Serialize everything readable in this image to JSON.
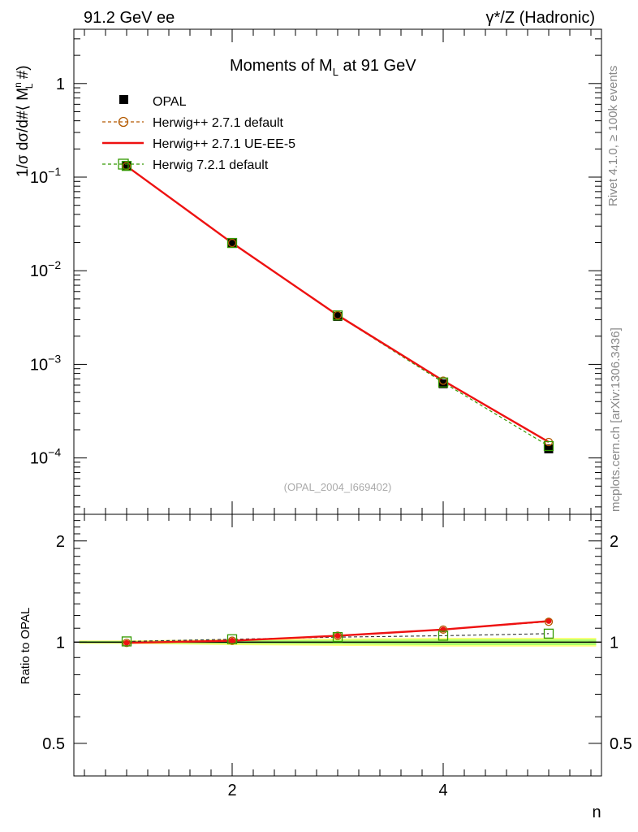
{
  "header": {
    "left": "91.2 GeV ee",
    "right": "γ*/Z (Hadronic)"
  },
  "side_labels": {
    "rivet": "Rivet 4.1.0, ≥ 100k events",
    "mcplots": "mcplots.cern.ch [arXiv:1306.3436]"
  },
  "colors": {
    "opal": "#000000",
    "herwigpp_default": "#b35900",
    "herwigpp_ue": "#ee1111",
    "herwig7": "#339900",
    "band_yellow": "#ffff66",
    "band_green": "#99ff66"
  },
  "chart_data": [
    {
      "type": "line",
      "panel": "main",
      "title_main": "Moments of M",
      "title_sub": "L",
      "title_tail": " at 91 GeV",
      "ylabel_prefix": "1/σ  dσ/d#⟨ M",
      "ylabel_sup": "n",
      "ylabel_sub": "L",
      "ylabel_suffix": " #)",
      "yscale": "log",
      "ylim": [
        2.5e-05,
        3.8
      ],
      "xlim": [
        0.5,
        5.5
      ],
      "y_ticks": [
        {
          "value": 0.0001,
          "base": "10",
          "exp": "−4"
        },
        {
          "value": 0.001,
          "base": "10",
          "exp": "−3"
        },
        {
          "value": 0.01,
          "base": "10",
          "exp": "−2"
        },
        {
          "value": 0.1,
          "base": "10",
          "exp": "−1"
        },
        {
          "value": 1,
          "base": "1",
          "exp": ""
        }
      ],
      "watermark": "(OPAL_2004_I669402)",
      "x": [
        1,
        2,
        3,
        4,
        5
      ],
      "series": [
        {
          "name": "OPAL",
          "values": [
            0.1315,
            0.0196,
            0.00325,
            0.00062,
            0.000125
          ]
        },
        {
          "name": "Herwig++ 2.7.1 default",
          "values": [
            0.1312,
            0.0198,
            0.00335,
            0.00067,
            0.000148
          ]
        },
        {
          "name": "Herwig++ 2.7.1 UE-EE-5",
          "values": [
            0.1312,
            0.0198,
            0.00335,
            0.00067,
            0.000148
          ]
        },
        {
          "name": "Herwig 7.2.1 default",
          "values": [
            0.1318,
            0.0198,
            0.00333,
            0.00064,
            0.000134
          ]
        }
      ]
    },
    {
      "type": "line",
      "panel": "ratio",
      "ylabel": "Ratio to OPAL",
      "xlabel": "n",
      "yscale": "log",
      "ylim": [
        0.4,
        2.4
      ],
      "xlim": [
        0.5,
        5.5
      ],
      "y_tick_labels": [
        {
          "value": 0.5,
          "label": "0.5"
        },
        {
          "value": 1,
          "label": "1"
        },
        {
          "value": 2,
          "label": "2"
        }
      ],
      "x_tick_labels": [
        {
          "value": 2,
          "label": "2"
        },
        {
          "value": 4,
          "label": "4"
        }
      ],
      "x": [
        1,
        2,
        3,
        4,
        5
      ],
      "band_yellow_half_width": [
        0.012,
        0.02,
        0.025,
        0.03,
        0.03
      ],
      "band_green_half_width": [
        0.008,
        0.012,
        0.015,
        0.02,
        0.02
      ],
      "series": [
        {
          "name": "Herwig++ 2.7.1 default",
          "values": [
            0.995,
            1.01,
            1.045,
            1.09,
            1.15
          ]
        },
        {
          "name": "Herwig++ 2.7.1 UE-EE-5",
          "values": [
            0.995,
            1.01,
            1.045,
            1.09,
            1.155
          ]
        },
        {
          "name": "Herwig 7.2.1 default",
          "values": [
            1.005,
            1.02,
            1.035,
            1.045,
            1.06
          ]
        }
      ]
    }
  ]
}
